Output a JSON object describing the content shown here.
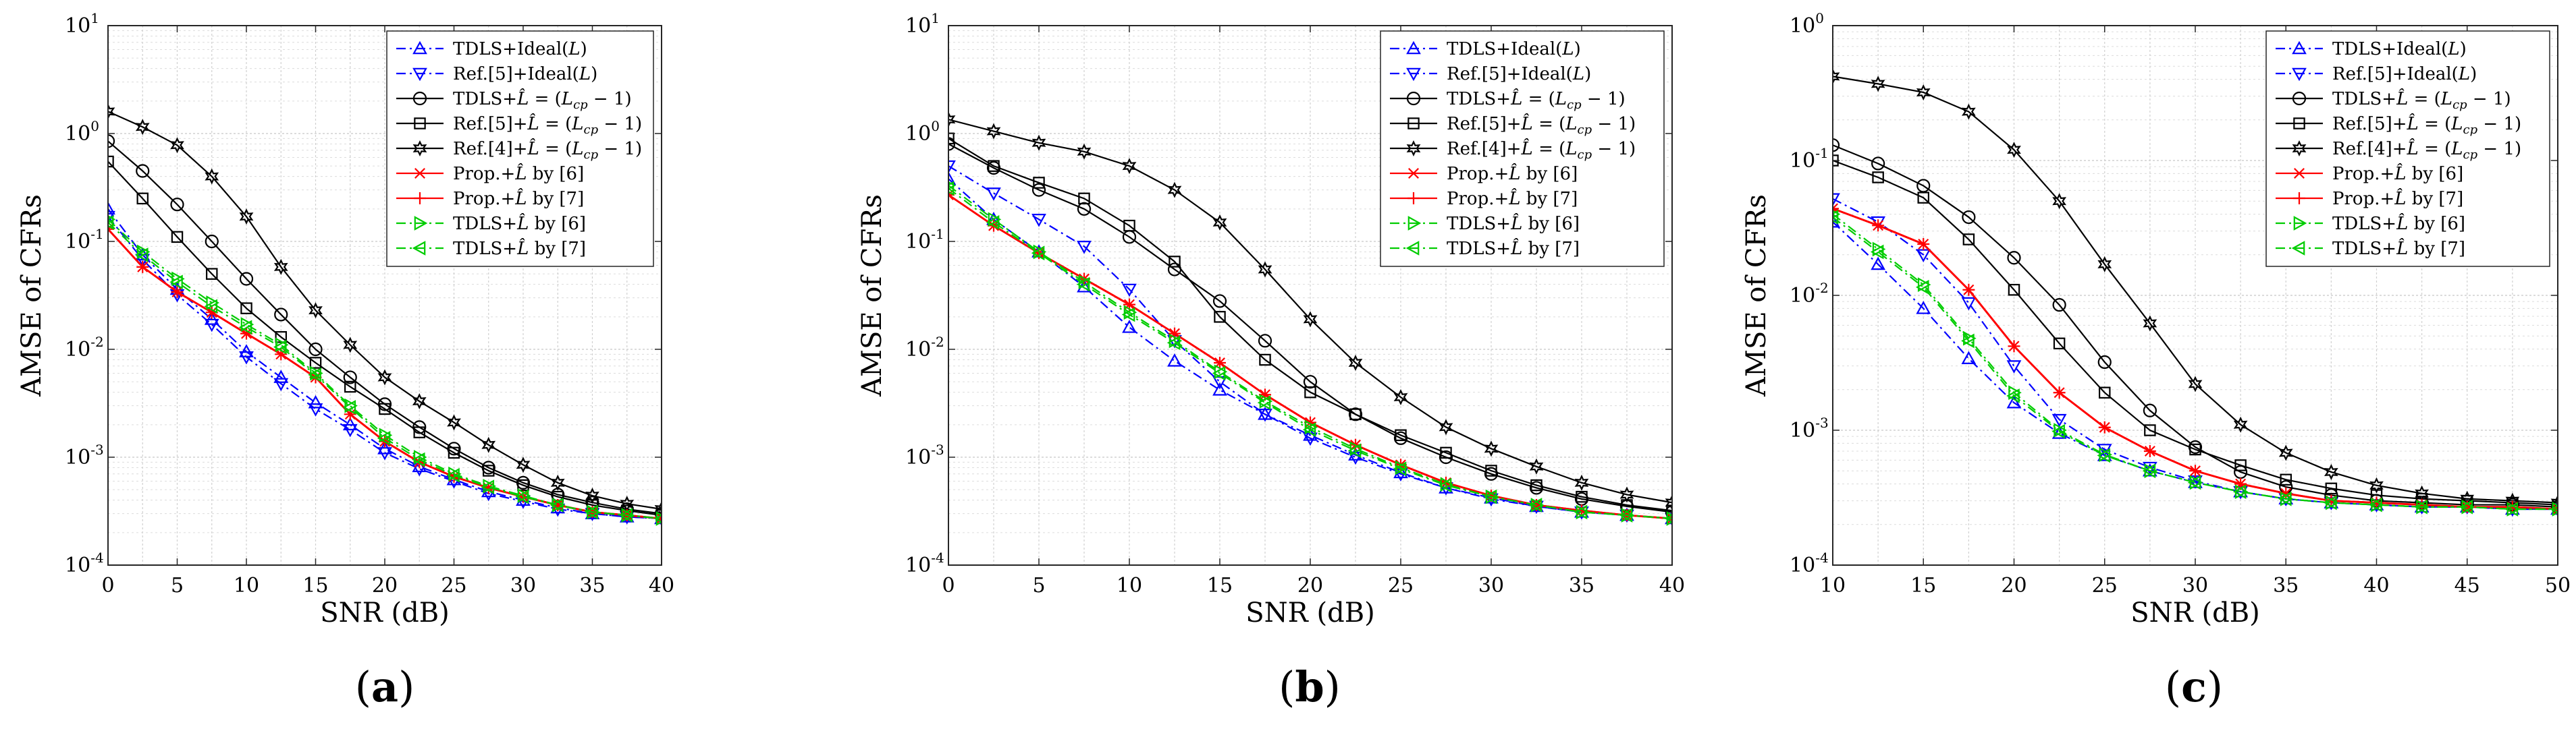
{
  "chart_data": [
    {
      "type": "line",
      "panel_label": "a",
      "xlabel": "SNR (dB)",
      "ylabel": "AMSE of CFRs",
      "xlim": [
        0,
        40
      ],
      "ylim": [
        0.0001,
        10
      ],
      "yscale": "log",
      "xticks": [
        0,
        5,
        10,
        15,
        20,
        25,
        30,
        35,
        40
      ],
      "yticks": [
        {
          "value": 0.0001,
          "base": "10",
          "exp": "-4"
        },
        {
          "value": 0.001,
          "base": "10",
          "exp": "-3"
        },
        {
          "value": 0.01,
          "base": "10",
          "exp": "-2"
        },
        {
          "value": 0.1,
          "base": "10",
          "exp": "-1"
        },
        {
          "value": 1,
          "base": "10",
          "exp": "0"
        },
        {
          "value": 10,
          "base": "10",
          "exp": "1"
        }
      ],
      "grid": true,
      "legend_position": "top-right",
      "x": [
        0,
        2.5,
        5,
        7.5,
        10,
        12.5,
        15,
        17.5,
        20,
        22.5,
        25,
        27.5,
        30,
        32.5,
        35,
        37.5,
        40
      ],
      "series": [
        {
          "name_parts": [
            "TDLS+Ideal(",
            "L",
            ")"
          ],
          "color": "#0000ff",
          "dash": "dashdot",
          "marker": "tri-up",
          "values": [
            0.2,
            0.075,
            0.036,
            0.019,
            0.0095,
            0.0055,
            0.0032,
            0.002,
            0.0012,
            0.00082,
            0.00062,
            0.00048,
            0.0004,
            0.00034,
            0.0003,
            0.00028,
            0.00027
          ]
        },
        {
          "name_parts": [
            "Ref.[5]+Ideal(",
            "L",
            ")"
          ],
          "color": "#0000ff",
          "dash": "dashdot",
          "marker": "tri-down",
          "values": [
            0.17,
            0.068,
            0.032,
            0.017,
            0.0085,
            0.0048,
            0.0028,
            0.0018,
            0.0011,
            0.00078,
            0.0006,
            0.00046,
            0.00039,
            0.00033,
            0.0003,
            0.00028,
            0.00027
          ]
        },
        {
          "name_parts": [
            "TDLS+",
            "L̂",
            " = (",
            "L",
            "cp",
            " − 1)"
          ],
          "color": "#000000",
          "dash": "solid",
          "marker": "circle",
          "values": [
            0.85,
            0.45,
            0.22,
            0.1,
            0.045,
            0.021,
            0.01,
            0.0055,
            0.0031,
            0.0019,
            0.0012,
            0.0008,
            0.00058,
            0.00045,
            0.00038,
            0.00033,
            0.0003
          ]
        },
        {
          "name_parts": [
            "Ref.[5]+",
            "L̂",
            " = (",
            "L",
            "cp",
            " − 1)"
          ],
          "color": "#000000",
          "dash": "solid",
          "marker": "square",
          "values": [
            0.55,
            0.25,
            0.11,
            0.05,
            0.024,
            0.013,
            0.0075,
            0.0045,
            0.0028,
            0.0017,
            0.0011,
            0.00075,
            0.00055,
            0.00043,
            0.00036,
            0.00032,
            0.00029
          ]
        },
        {
          "name_parts": [
            "Ref.[4]+",
            "L̂",
            " = (",
            "L",
            "cp",
            " − 1)"
          ],
          "color": "#000000",
          "dash": "solid",
          "marker": "hexagram",
          "values": [
            1.6,
            1.15,
            0.78,
            0.4,
            0.17,
            0.058,
            0.023,
            0.011,
            0.0055,
            0.0033,
            0.0021,
            0.0013,
            0.00085,
            0.00058,
            0.00044,
            0.00037,
            0.00033
          ]
        },
        {
          "name_parts": [
            "Prop.+",
            "L̂",
            " by [6]"
          ],
          "color": "#ff0000",
          "dash": "solid",
          "marker": "x",
          "values": [
            0.13,
            0.058,
            0.034,
            0.022,
            0.014,
            0.009,
            0.0055,
            0.0025,
            0.0014,
            0.0009,
            0.00066,
            0.00052,
            0.00043,
            0.00036,
            0.00031,
            0.00029,
            0.00027
          ]
        },
        {
          "name_parts": [
            "Prop.+",
            "L̂",
            " by [7]"
          ],
          "color": "#ff0000",
          "dash": "solid",
          "marker": "plus",
          "values": [
            0.13,
            0.058,
            0.034,
            0.022,
            0.014,
            0.009,
            0.0055,
            0.0025,
            0.0014,
            0.0009,
            0.00066,
            0.00052,
            0.00043,
            0.00036,
            0.00031,
            0.00029,
            0.00027
          ]
        },
        {
          "name_parts": [
            "TDLS+",
            "L̂",
            " by [6]"
          ],
          "color": "#00cc00",
          "dash": "dashdot",
          "marker": "tri-right",
          "values": [
            0.16,
            0.08,
            0.045,
            0.027,
            0.017,
            0.011,
            0.006,
            0.003,
            0.0016,
            0.001,
            0.0007,
            0.00054,
            0.00044,
            0.00036,
            0.00031,
            0.00029,
            0.00027
          ]
        },
        {
          "name_parts": [
            "TDLS+",
            "L̂",
            " by [7]"
          ],
          "color": "#00cc00",
          "dash": "dashdot",
          "marker": "tri-left",
          "values": [
            0.15,
            0.075,
            0.042,
            0.025,
            0.016,
            0.0105,
            0.0058,
            0.0029,
            0.0015,
            0.00095,
            0.00068,
            0.00053,
            0.00043,
            0.00036,
            0.00031,
            0.00029,
            0.00027
          ]
        }
      ]
    },
    {
      "type": "line",
      "panel_label": "b",
      "xlabel": "SNR (dB)",
      "ylabel": "AMSE of CFRs",
      "xlim": [
        0,
        40
      ],
      "ylim": [
        0.0001,
        10
      ],
      "yscale": "log",
      "xticks": [
        0,
        5,
        10,
        15,
        20,
        25,
        30,
        35,
        40
      ],
      "yticks": [
        {
          "value": 0.0001,
          "base": "10",
          "exp": "-4"
        },
        {
          "value": 0.001,
          "base": "10",
          "exp": "-3"
        },
        {
          "value": 0.01,
          "base": "10",
          "exp": "-2"
        },
        {
          "value": 0.1,
          "base": "10",
          "exp": "-1"
        },
        {
          "value": 1,
          "base": "10",
          "exp": "0"
        },
        {
          "value": 10,
          "base": "10",
          "exp": "1"
        }
      ],
      "grid": true,
      "legend_position": "top-right",
      "x": [
        0,
        2.5,
        5,
        7.5,
        10,
        12.5,
        15,
        17.5,
        20,
        22.5,
        25,
        27.5,
        30,
        32.5,
        35,
        37.5,
        40
      ],
      "series": [
        {
          "name_parts": [
            "TDLS+Ideal(",
            "L",
            ")"
          ],
          "color": "#0000ff",
          "dash": "dashdot",
          "marker": "tri-up",
          "values": [
            0.38,
            0.16,
            0.08,
            0.038,
            0.016,
            0.0078,
            0.0042,
            0.0025,
            0.0016,
            0.00105,
            0.00072,
            0.00052,
            0.00042,
            0.00035,
            0.00031,
            0.00029,
            0.00027
          ]
        },
        {
          "name_parts": [
            "Ref.[5]+Ideal(",
            "L",
            ")"
          ],
          "color": "#0000ff",
          "dash": "dashdot",
          "marker": "tri-down",
          "values": [
            0.5,
            0.28,
            0.16,
            0.09,
            0.036,
            0.012,
            0.005,
            0.0025,
            0.0015,
            0.001,
            0.0007,
            0.00052,
            0.00041,
            0.00035,
            0.00031,
            0.00029,
            0.00027
          ]
        },
        {
          "name_parts": [
            "TDLS+",
            "L̂",
            " = (",
            "L",
            "cp",
            " − 1)"
          ],
          "color": "#000000",
          "dash": "solid",
          "marker": "circle",
          "values": [
            0.8,
            0.48,
            0.3,
            0.2,
            0.11,
            0.055,
            0.028,
            0.012,
            0.005,
            0.0025,
            0.0015,
            0.001,
            0.0007,
            0.00052,
            0.00041,
            0.00035,
            0.00031
          ]
        },
        {
          "name_parts": [
            "Ref.[5]+",
            "L̂",
            " = (",
            "L",
            "cp",
            " − 1)"
          ],
          "color": "#000000",
          "dash": "solid",
          "marker": "square",
          "values": [
            0.9,
            0.5,
            0.35,
            0.25,
            0.14,
            0.065,
            0.02,
            0.008,
            0.004,
            0.0025,
            0.0016,
            0.0011,
            0.00075,
            0.00055,
            0.00043,
            0.00036,
            0.00032
          ]
        },
        {
          "name_parts": [
            "Ref.[4]+",
            "L̂",
            " = (",
            "L",
            "cp",
            " − 1)"
          ],
          "color": "#000000",
          "dash": "solid",
          "marker": "hexagram",
          "values": [
            1.35,
            1.05,
            0.82,
            0.68,
            0.5,
            0.3,
            0.15,
            0.055,
            0.019,
            0.0075,
            0.0036,
            0.0019,
            0.0012,
            0.00082,
            0.00058,
            0.00045,
            0.00038
          ]
        },
        {
          "name_parts": [
            "Prop.+",
            "L̂",
            " by [6]"
          ],
          "color": "#ff0000",
          "dash": "solid",
          "marker": "x",
          "values": [
            0.27,
            0.14,
            0.078,
            0.045,
            0.026,
            0.014,
            0.0075,
            0.0038,
            0.0021,
            0.0013,
            0.00085,
            0.00058,
            0.00044,
            0.00036,
            0.00032,
            0.00029,
            0.00027
          ]
        },
        {
          "name_parts": [
            "Prop.+",
            "L̂",
            " by [7]"
          ],
          "color": "#ff0000",
          "dash": "solid",
          "marker": "plus",
          "values": [
            0.27,
            0.14,
            0.078,
            0.045,
            0.026,
            0.014,
            0.0075,
            0.0038,
            0.0021,
            0.0013,
            0.00085,
            0.00058,
            0.00044,
            0.00036,
            0.00032,
            0.00029,
            0.00027
          ]
        },
        {
          "name_parts": [
            "TDLS+",
            "L̂",
            " by [6]"
          ],
          "color": "#00cc00",
          "dash": "dashdot",
          "marker": "tri-right",
          "values": [
            0.33,
            0.16,
            0.08,
            0.042,
            0.022,
            0.012,
            0.0062,
            0.0033,
            0.0019,
            0.0012,
            0.0008,
            0.00056,
            0.00043,
            0.00036,
            0.00031,
            0.00029,
            0.00027
          ]
        },
        {
          "name_parts": [
            "TDLS+",
            "L̂",
            " by [7]"
          ],
          "color": "#00cc00",
          "dash": "dashdot",
          "marker": "tri-left",
          "values": [
            0.31,
            0.15,
            0.078,
            0.04,
            0.021,
            0.0115,
            0.006,
            0.0032,
            0.0018,
            0.00115,
            0.00078,
            0.00055,
            0.00043,
            0.00036,
            0.00031,
            0.00029,
            0.00027
          ]
        }
      ]
    },
    {
      "type": "line",
      "panel_label": "c",
      "xlabel": "SNR (dB)",
      "ylabel": "AMSE of CFRs",
      "xlim": [
        10,
        50
      ],
      "ylim": [
        0.0001,
        1
      ],
      "yscale": "log",
      "xticks": [
        10,
        15,
        20,
        25,
        30,
        35,
        40,
        45,
        50
      ],
      "yticks": [
        {
          "value": 0.0001,
          "base": "10",
          "exp": "-4"
        },
        {
          "value": 0.001,
          "base": "10",
          "exp": "-3"
        },
        {
          "value": 0.01,
          "base": "10",
          "exp": "-2"
        },
        {
          "value": 0.1,
          "base": "10",
          "exp": "-1"
        },
        {
          "value": 1,
          "base": "10",
          "exp": "0"
        }
      ],
      "grid": true,
      "legend_position": "top-right",
      "x": [
        10,
        12.5,
        15,
        17.5,
        20,
        22.5,
        25,
        27.5,
        30,
        32.5,
        35,
        37.5,
        40,
        42.5,
        45,
        47.5,
        50
      ],
      "series": [
        {
          "name_parts": [
            "TDLS+Ideal(",
            "L",
            ")"
          ],
          "color": "#0000ff",
          "dash": "dashdot",
          "marker": "tri-up",
          "values": [
            0.035,
            0.017,
            0.008,
            0.0034,
            0.0016,
            0.00095,
            0.00065,
            0.0005,
            0.00041,
            0.00035,
            0.00031,
            0.00029,
            0.00028,
            0.00027,
            0.00027,
            0.00026,
            0.00026
          ]
        },
        {
          "name_parts": [
            "Ref.[5]+Ideal(",
            "L",
            ")"
          ],
          "color": "#0000ff",
          "dash": "dashdot",
          "marker": "tri-down",
          "values": [
            0.052,
            0.035,
            0.02,
            0.0088,
            0.003,
            0.0012,
            0.00072,
            0.00053,
            0.00042,
            0.00035,
            0.00031,
            0.00029,
            0.00028,
            0.00027,
            0.00027,
            0.00026,
            0.00026
          ]
        },
        {
          "name_parts": [
            "TDLS+",
            "L̂",
            " = (",
            "L",
            "cp",
            " − 1)"
          ],
          "color": "#000000",
          "dash": "solid",
          "marker": "circle",
          "values": [
            0.13,
            0.095,
            0.065,
            0.038,
            0.019,
            0.0085,
            0.0032,
            0.0014,
            0.00075,
            0.00049,
            0.00038,
            0.00033,
            0.0003,
            0.00029,
            0.00028,
            0.00028,
            0.00027
          ]
        },
        {
          "name_parts": [
            "Ref.[5]+",
            "L̂",
            " = (",
            "L",
            "cp",
            " − 1)"
          ],
          "color": "#000000",
          "dash": "solid",
          "marker": "square",
          "values": [
            0.1,
            0.075,
            0.053,
            0.026,
            0.011,
            0.0044,
            0.0019,
            0.001,
            0.00072,
            0.00055,
            0.00043,
            0.00037,
            0.00033,
            0.00031,
            0.0003,
            0.00029,
            0.00028
          ]
        },
        {
          "name_parts": [
            "Ref.[4]+",
            "L̂",
            " = (",
            "L",
            "cp",
            " − 1)"
          ],
          "color": "#000000",
          "dash": "solid",
          "marker": "hexagram",
          "values": [
            0.42,
            0.37,
            0.32,
            0.23,
            0.12,
            0.05,
            0.017,
            0.0062,
            0.0022,
            0.0011,
            0.00068,
            0.00049,
            0.00039,
            0.00034,
            0.00031,
            0.0003,
            0.00029
          ]
        },
        {
          "name_parts": [
            "Prop.+",
            "L̂",
            " by [6]"
          ],
          "color": "#ff0000",
          "dash": "solid",
          "marker": "x",
          "values": [
            0.044,
            0.033,
            0.024,
            0.011,
            0.0042,
            0.0019,
            0.00105,
            0.0007,
            0.0005,
            0.0004,
            0.00034,
            0.0003,
            0.00029,
            0.00028,
            0.00027,
            0.00027,
            0.00026
          ]
        },
        {
          "name_parts": [
            "Prop.+",
            "L̂",
            " by [7]"
          ],
          "color": "#ff0000",
          "dash": "solid",
          "marker": "plus",
          "values": [
            0.044,
            0.033,
            0.024,
            0.011,
            0.0042,
            0.0019,
            0.00105,
            0.0007,
            0.0005,
            0.0004,
            0.00034,
            0.0003,
            0.00029,
            0.00028,
            0.00027,
            0.00027,
            0.00026
          ]
        },
        {
          "name_parts": [
            "TDLS+",
            "L̂",
            " by [6]"
          ],
          "color": "#00cc00",
          "dash": "dashdot",
          "marker": "tri-right",
          "values": [
            0.04,
            0.022,
            0.012,
            0.0048,
            0.0019,
            0.001,
            0.00066,
            0.0005,
            0.00041,
            0.00035,
            0.00031,
            0.00029,
            0.00028,
            0.00027,
            0.00027,
            0.00026,
            0.00026
          ]
        },
        {
          "name_parts": [
            "TDLS+",
            "L̂",
            " by [7]"
          ],
          "color": "#00cc00",
          "dash": "dashdot",
          "marker": "tri-left",
          "values": [
            0.038,
            0.021,
            0.0115,
            0.0046,
            0.0018,
            0.00098,
            0.00065,
            0.0005,
            0.00041,
            0.00035,
            0.00031,
            0.00029,
            0.00028,
            0.00027,
            0.00027,
            0.00026,
            0.00026
          ]
        }
      ]
    }
  ]
}
